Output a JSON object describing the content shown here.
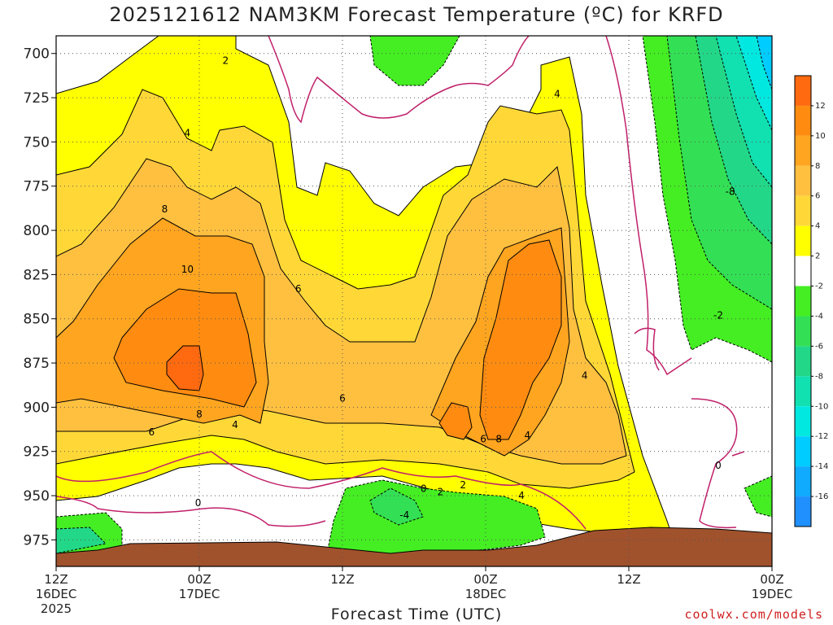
{
  "title": "2025121612 NAM3KM Forecast Temperature (ºC) for KRFD",
  "credit": "coolwx.com/models",
  "chart_data": {
    "type": "contour",
    "title": "2025121612 NAM3KM Forecast Temperature (ºC) for KRFD",
    "xlabel": "Forecast Time (UTC)",
    "ylabel": "",
    "x_ticks": [
      {
        "label": "12Z",
        "sub": "16DEC",
        "sub2": "2025",
        "hour": 0
      },
      {
        "label": "00Z",
        "sub": "17DEC",
        "sub2": "",
        "hour": 12
      },
      {
        "label": "12Z",
        "sub": "",
        "sub2": "",
        "hour": 24
      },
      {
        "label": "00Z",
        "sub": "18DEC",
        "sub2": "",
        "hour": 36
      },
      {
        "label": "12Z",
        "sub": "",
        "sub2": "",
        "hour": 48
      },
      {
        "label": "00Z",
        "sub": "19DEC",
        "sub2": "",
        "hour": 60
      }
    ],
    "xlim": [
      0,
      60
    ],
    "y_ticks": [
      700,
      725,
      750,
      775,
      800,
      825,
      850,
      875,
      900,
      925,
      950,
      975
    ],
    "ylim": [
      690,
      990
    ],
    "y_axis_reversed": true,
    "grid": true,
    "colorbar": {
      "position": "right",
      "labels": [
        "12",
        "10",
        "8",
        "6",
        "4",
        "2",
        "-2",
        "-4",
        "-6",
        "-8",
        "-10",
        "-12",
        "-14",
        "-16"
      ],
      "colors": [
        "#ff6a10",
        "#ff8c10",
        "#ffa520",
        "#ffc040",
        "#ffd838",
        "#ffff00",
        "#ffffff",
        "#44ee22",
        "#33e055",
        "#22d888",
        "#11e0b0",
        "#00e8e0",
        "#00ccff",
        "#10aaff",
        "#2090ff"
      ]
    },
    "contour_labels": [
      {
        "text": "2",
        "hour": 14.2,
        "p": 704
      },
      {
        "text": "4",
        "hour": 11,
        "p": 745
      },
      {
        "text": "8",
        "hour": 9.1,
        "p": 788
      },
      {
        "text": "10",
        "hour": 11,
        "p": 822
      },
      {
        "text": "6",
        "hour": 20.3,
        "p": 833
      },
      {
        "text": "6",
        "hour": 24,
        "p": 895
      },
      {
        "text": "8",
        "hour": 12,
        "p": 904
      },
      {
        "text": "6",
        "hour": 8,
        "p": 914
      },
      {
        "text": "4",
        "hour": 15,
        "p": 910
      },
      {
        "text": "0",
        "hour": 11.9,
        "p": 954
      },
      {
        "text": "0",
        "hour": 30.8,
        "p": 946
      },
      {
        "text": "2",
        "hour": 32.2,
        "p": 948
      },
      {
        "text": "2",
        "hour": 34.1,
        "p": 944
      },
      {
        "text": "-4",
        "hour": 29.2,
        "p": 961
      },
      {
        "text": "6",
        "hour": 35.8,
        "p": 918
      },
      {
        "text": "8",
        "hour": 37.1,
        "p": 918
      },
      {
        "text": "4",
        "hour": 39.5,
        "p": 916
      },
      {
        "text": "4",
        "hour": 39,
        "p": 950
      },
      {
        "text": "4",
        "hour": 42,
        "p": 723
      },
      {
        "text": "4",
        "hour": 44.3,
        "p": 882
      },
      {
        "text": "-8",
        "hour": 56.5,
        "p": 778
      },
      {
        "text": "-2",
        "hour": 55.5,
        "p": 848
      },
      {
        "text": "0",
        "hour": 55.5,
        "p": 933
      }
    ]
  }
}
